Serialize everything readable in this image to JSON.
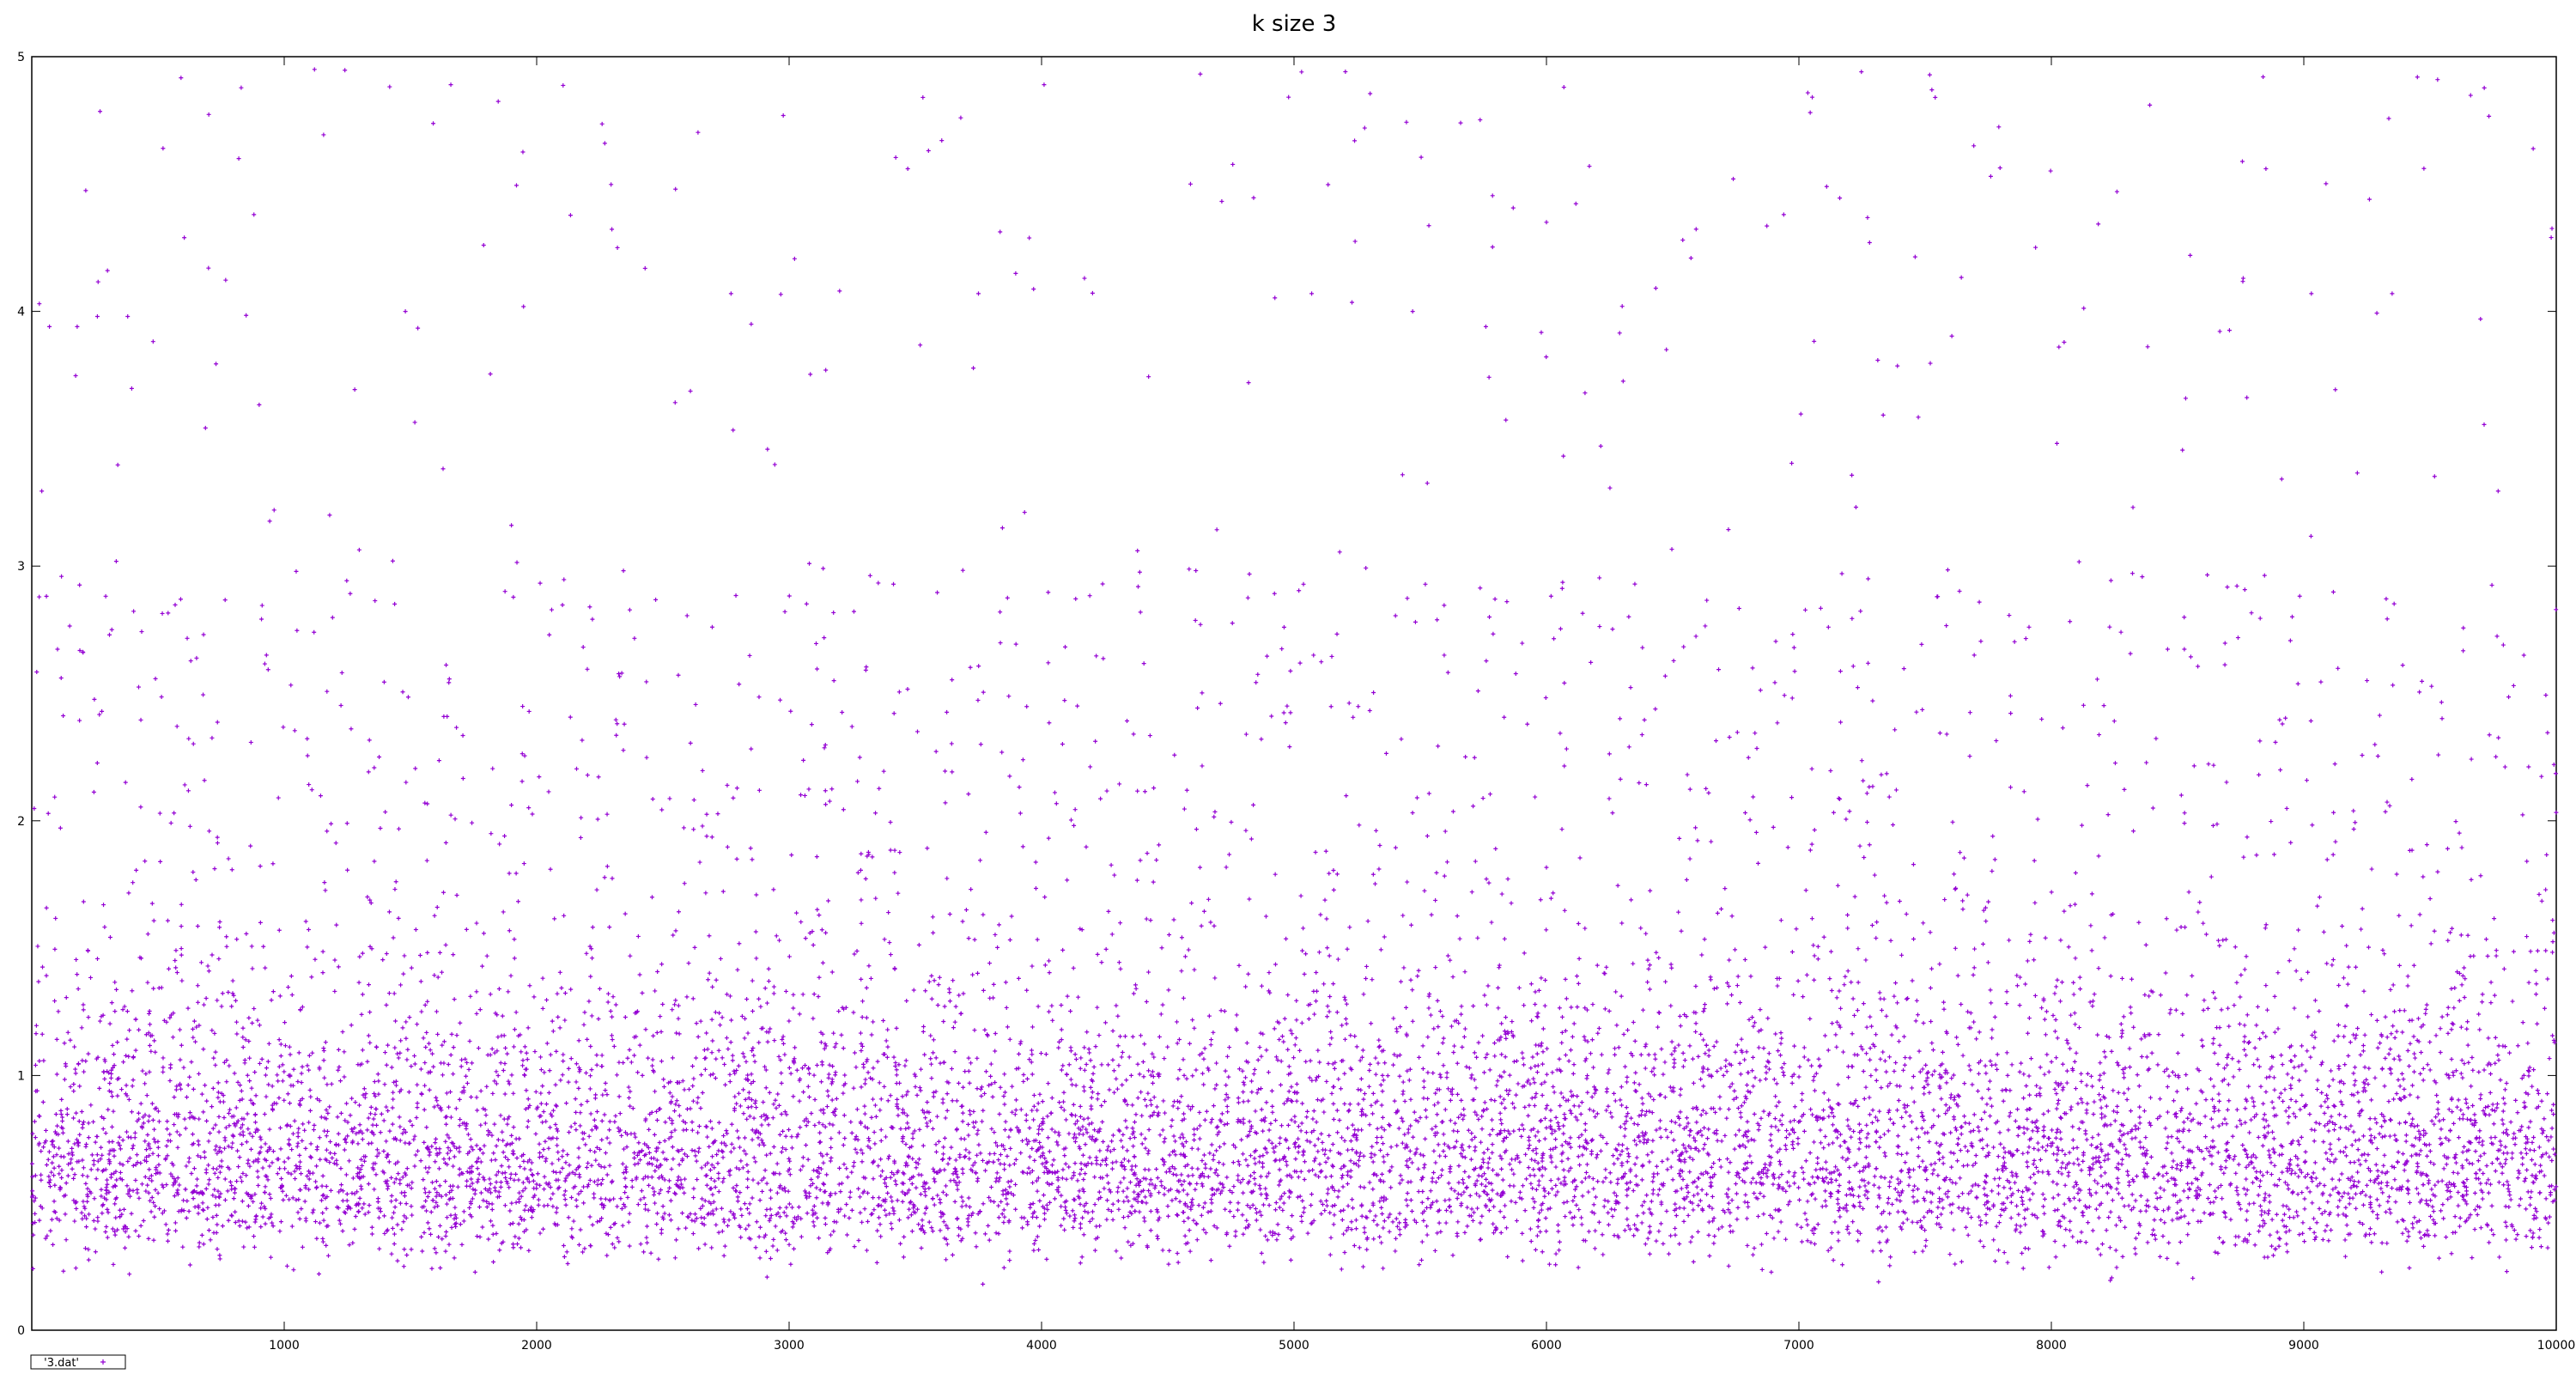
{
  "chart_data": {
    "type": "scatter",
    "title": "k size 3",
    "xlabel": "",
    "ylabel": "",
    "xlim": [
      0,
      10000
    ],
    "ylim": [
      0,
      5
    ],
    "x_ticks": [
      1000,
      2000,
      3000,
      4000,
      5000,
      6000,
      7000,
      8000,
      9000,
      10000
    ],
    "y_ticks": [
      0,
      1,
      2,
      3,
      4,
      5
    ],
    "grid": false,
    "legend": {
      "position": "bottom-left",
      "entries": [
        "'3.dat'"
      ]
    },
    "series": [
      {
        "name": "'3.dat'",
        "marker": "+",
        "color": "#9400d3",
        "point_count_approx": 10000,
        "x": [
          30,
          70,
          180,
          260,
          300,
          380,
          520,
          590,
          700,
          820,
          880,
          960,
          1120,
          1180,
          1430,
          1480,
          1660,
          1790,
          1900,
          2050,
          2270,
          2320,
          2550,
          2770,
          2850,
          3080,
          3200,
          3470,
          3530,
          3680,
          3750,
          4010,
          4170,
          4380,
          4590,
          4820,
          5030,
          5070,
          5240,
          5280,
          5470,
          5660,
          5760,
          6000,
          6170,
          6300,
          6540,
          6740,
          6940,
          7110,
          7280,
          7540,
          7760,
          8030,
          8260,
          8390,
          8550,
          8760,
          8850,
          9030,
          9260,
          9350,
          9450,
          9530,
          9700,
          9980
        ],
        "y": [
          4.03,
          3.94,
          3.94,
          3.98,
          4.16,
          3.98,
          4.64,
          2.87,
          4.17,
          4.6,
          4.38,
          3.22,
          4.95,
          3.2,
          3.02,
          4.0,
          4.89,
          4.26,
          3.16,
          2.73,
          4.66,
          4.25,
          4.48,
          4.07,
          3.95,
          3.01,
          4.08,
          4.56,
          4.84,
          4.76,
          4.07,
          4.89,
          4.13,
          3.06,
          4.5,
          3.72,
          4.94,
          4.07,
          4.67,
          4.72,
          4.0,
          4.74,
          3.94,
          4.35,
          4.57,
          4.02,
          4.28,
          4.52,
          4.38,
          4.49,
          4.27,
          4.84,
          4.53,
          3.86,
          4.47,
          4.81,
          4.22,
          4.13,
          4.56,
          4.07,
          4.44,
          4.07,
          4.92,
          4.91,
          3.97,
          4.29
        ],
        "bulk_distribution": {
          "x_range": [
            0,
            10000
          ],
          "dense_y_range": [
            0.2,
            1.8
          ],
          "median_y_approx": 0.7,
          "sparse_tail_up_to": 5.0
        }
      }
    ]
  }
}
